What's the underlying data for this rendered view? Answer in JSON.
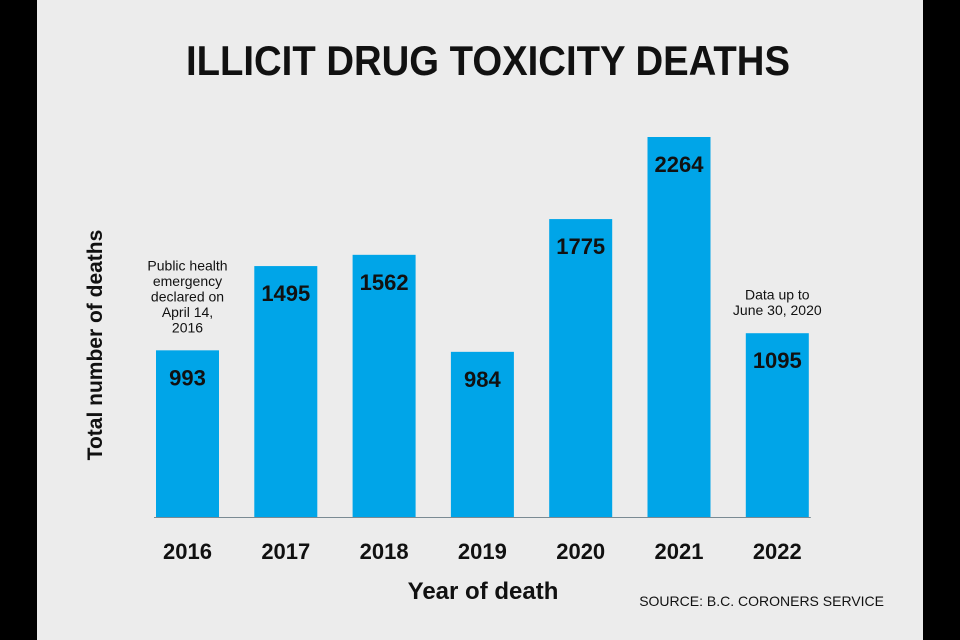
{
  "colors": {
    "bar": "#00a5e8",
    "text": "#111111",
    "card_background": "#ececec",
    "page_background": "#000000"
  },
  "chart_data": {
    "type": "bar",
    "title": "ILLICIT DRUG TOXICITY DEATHS",
    "xlabel": "Year of death",
    "ylabel": "Total number of deaths",
    "categories": [
      "2016",
      "2017",
      "2018",
      "2019",
      "2020",
      "2021",
      "2022"
    ],
    "values": [
      993,
      1495,
      1562,
      984,
      1775,
      2264,
      1095
    ],
    "data_labels": [
      "993",
      "1495",
      "1562",
      "984",
      "1775",
      "2264",
      "1095"
    ],
    "ylim": [
      0,
      2264
    ],
    "grid": false,
    "legend": "none",
    "annotations": [
      {
        "category": "2016",
        "text": [
          "Public health",
          "emergency",
          "declared on",
          "April 14,",
          "2016"
        ]
      },
      {
        "category": "2022",
        "text": [
          "Data up to",
          "June 30, 2020"
        ]
      }
    ],
    "source": "SOURCE: B.C. CORONERS SERVICE"
  }
}
